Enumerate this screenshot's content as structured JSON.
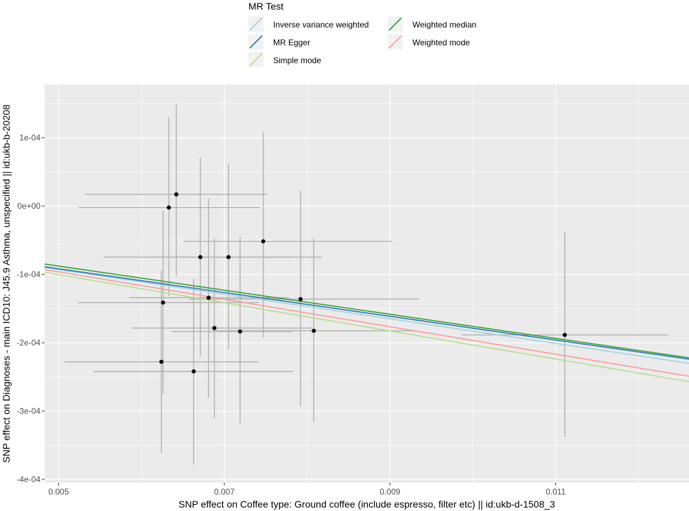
{
  "chart_data": {
    "type": "scatter",
    "title": "",
    "xlabel": "SNP effect on Coffee type: Ground coffee (include espresso, filter etc) || id:ukb-d-1508_3",
    "ylabel": "SNP effect on Diagnoses - main ICD10: J45.9 Asthma, unspecified || id:ukb-b-20208",
    "xlim": [
      0.00483,
      0.01261
    ],
    "ylim": [
      -0.000405,
      0.000178
    ],
    "x_ticks": [
      {
        "value": 0.005,
        "label": "0.005"
      },
      {
        "value": 0.007,
        "label": "0.007"
      },
      {
        "value": 0.009,
        "label": "0.009"
      },
      {
        "value": 0.011,
        "label": "0.011"
      }
    ],
    "y_ticks": [
      {
        "value": 0.0001,
        "label": "1e-04"
      },
      {
        "value": 0.0,
        "label": "0e+00"
      },
      {
        "value": -0.0001,
        "label": "-1e-04"
      },
      {
        "value": -0.0002,
        "label": "-2e-04"
      },
      {
        "value": -0.0003,
        "label": "-3e-04"
      },
      {
        "value": -0.0004,
        "label": "-4e-04"
      }
    ],
    "grid": true,
    "legend": {
      "title": "MR Test",
      "position": "top",
      "entries": [
        {
          "name": "Inverse variance weighted",
          "color": "#a6cee3"
        },
        {
          "name": "MR Egger",
          "color": "#1f78b4"
        },
        {
          "name": "Simple mode",
          "color": "#b2df8a"
        },
        {
          "name": "Weighted median",
          "color": "#33a02c"
        },
        {
          "name": "Weighted mode",
          "color": "#fb9a99"
        }
      ]
    },
    "series": [
      {
        "name": "Inverse variance weighted",
        "color": "#a6cee3",
        "x": [
          0.00483,
          0.01261
        ],
        "y": [
          -8.98e-05,
          -0.00023
        ]
      },
      {
        "name": "MR Egger",
        "color": "#1f78b4",
        "x": [
          0.00483,
          0.01261
        ],
        "y": [
          -8.88e-05,
          -0.000224
        ]
      },
      {
        "name": "Simple mode",
        "color": "#b2df8a",
        "x": [
          0.00483,
          0.01261
        ],
        "y": [
          -9.68e-05,
          -0.000257
        ]
      },
      {
        "name": "Weighted median",
        "color": "#33a02c",
        "x": [
          0.00483,
          0.01261
        ],
        "y": [
          -8.48e-05,
          -0.000222
        ]
      },
      {
        "name": "Weighted mode",
        "color": "#fb9a99",
        "x": [
          0.00483,
          0.01261
        ],
        "y": [
          -9.28e-05,
          -0.000249
        ]
      }
    ],
    "points": [
      {
        "x": 0.00642,
        "y": 1.72e-05,
        "x_lo": 0.00532,
        "x_hi": 0.00752,
        "y_lo": -0.0001018,
        "y_hi": 0.0001492
      },
      {
        "x": 0.00633,
        "y": -2e-06,
        "x_lo": 0.00524,
        "x_hi": 0.00743,
        "y_lo": -0.0001322,
        "y_hi": 0.0001301
      },
      {
        "x": 0.00747,
        "y": -5.15e-05,
        "x_lo": 0.00651,
        "x_hi": 0.00903,
        "y_lo": -0.0001923,
        "y_hi": 0.0001084
      },
      {
        "x": 0.00671,
        "y": -7.47e-05,
        "x_lo": 0.00554,
        "x_hi": 0.00782,
        "y_lo": -0.0002204,
        "y_hi": 7.05e-05
      },
      {
        "x": 0.00705,
        "y": -7.47e-05,
        "x_lo": 0.00611,
        "x_hi": 0.00818,
        "y_lo": -0.0002093,
        "y_hi": 6.24e-05
      },
      {
        "x": 0.00681,
        "y": -0.0001341,
        "x_lo": 0.00585,
        "x_hi": 0.00778,
        "y_lo": -0.0002808,
        "y_hi": 1.11e-05
      },
      {
        "x": 0.00792,
        "y": -0.0001361,
        "x_lo": 0.00658,
        "x_hi": 0.00935,
        "y_lo": -0.0002928,
        "y_hi": 2.22e-05
      },
      {
        "x": 0.00626,
        "y": -0.0001412,
        "x_lo": 0.00523,
        "x_hi": 0.00742,
        "y_lo": -0.0002747,
        "y_hi": -7.2e-06
      },
      {
        "x": 0.00688,
        "y": -0.0001784,
        "x_lo": 0.00588,
        "x_hi": 0.00806,
        "y_lo": -0.0003109,
        "y_hi": -4.75e-05
      },
      {
        "x": 0.00719,
        "y": -0.0001835,
        "x_lo": 0.00636,
        "x_hi": 0.00782,
        "y_lo": -0.000318,
        "y_hi": -4.55e-05
      },
      {
        "x": 0.00808,
        "y": -0.0001825,
        "x_lo": 0.00686,
        "x_hi": 0.0093,
        "y_lo": -0.0003159,
        "y_hi": -4.75e-05
      },
      {
        "x": 0.00624,
        "y": -0.0002278,
        "x_lo": 0.00507,
        "x_hi": 0.00741,
        "y_lo": -0.0003613,
        "y_hi": -9.45e-05
      },
      {
        "x": 0.00663,
        "y": -0.0002419,
        "x_lo": 0.00542,
        "x_hi": 0.00783,
        "y_lo": -0.0003784,
        "y_hi": -0.0001064
      },
      {
        "x": 0.01111,
        "y": -0.0001885,
        "x_lo": 0.00987,
        "x_hi": 0.01236,
        "y_lo": -0.0003382,
        "y_hi": -3.87e-05
      }
    ]
  }
}
